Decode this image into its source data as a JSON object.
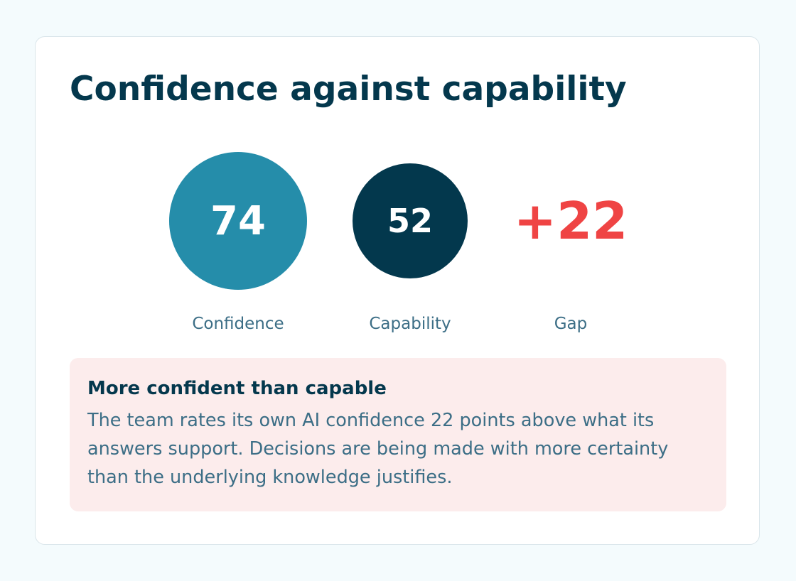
{
  "card": {
    "title": "Confidence against capability"
  },
  "metrics": {
    "confidence": {
      "value": "74",
      "label": "Confidence",
      "color": "#258daa"
    },
    "capability": {
      "value": "52",
      "label": "Capability",
      "color": "#03384d"
    },
    "gap": {
      "value": "+22",
      "label": "Gap",
      "color": "#ef4444"
    }
  },
  "alert": {
    "title": "More confident than capable",
    "body": "The team rates its own AI confidence 22 points above what its answers support. Decisions are being made with more certainty than the underlying knowledge justifies.",
    "background": "#fcecec"
  }
}
